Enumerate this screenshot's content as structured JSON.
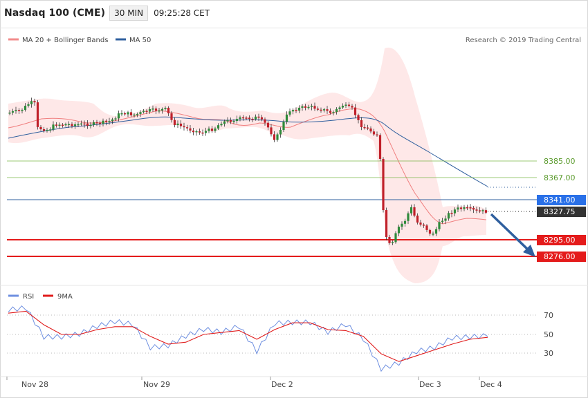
{
  "header": {
    "title": "Nasdaq 100 (CME)",
    "timeframe": "30 MIN",
    "time": "09:25:28 CET"
  },
  "legend": [
    {
      "label": "MA 20 + Bollinger Bands",
      "color": "#f28b8b"
    },
    {
      "label": "MA 50",
      "color": "#2f5f9e"
    }
  ],
  "credit": "Research © 2019 Trading Central",
  "levels": [
    {
      "value": "8385.00",
      "kind": "green"
    },
    {
      "value": "8367.00",
      "kind": "green"
    },
    {
      "value": "8341.00",
      "kind": "blue"
    },
    {
      "value": "8327.75",
      "kind": "current"
    },
    {
      "value": "8295.00",
      "kind": "red"
    },
    {
      "value": "8276.00",
      "kind": "red"
    }
  ],
  "rsi_panel": {
    "legend": [
      {
        "label": "RSI",
        "color": "#6e8fe0"
      },
      {
        "label": "9MA",
        "color": "#e01b1b"
      }
    ],
    "ticks": [
      "70",
      "50",
      "30"
    ]
  },
  "x_axis": [
    "Nov 28",
    "Nov 29",
    "Dec 2",
    "Dec 3",
    "Dec 4"
  ],
  "chart_data": {
    "type": "candlestick",
    "title": "Nasdaq 100 (CME)",
    "interval": "30 MIN",
    "price_levels": {
      "resistance": [
        8385.0,
        8367.0,
        8341.0
      ],
      "last_price": 8327.75,
      "support": [
        8295.0,
        8276.0
      ]
    },
    "approx_price_path": [
      {
        "x": "Nov 28",
        "price": 8438
      },
      {
        "x": "Nov 29",
        "price": 8432
      },
      {
        "x": "Dec 2",
        "price": 8445
      },
      {
        "x": "Dec 2 late",
        "price": 8425
      },
      {
        "x": "Dec 3 open",
        "price": 8280
      },
      {
        "x": "Dec 3",
        "price": 8305
      },
      {
        "x": "Dec 4",
        "price": 8328
      }
    ],
    "rsi_ticks": [
      70,
      50,
      30
    ],
    "rsi_series": [
      {
        "name": "RSI",
        "approx_values": [
          75,
          77,
          47,
          47,
          50,
          58,
          63,
          60,
          36,
          38,
          48,
          55,
          52,
          58,
          32,
          61,
          62,
          62,
          52,
          60,
          45,
          14,
          20,
          32,
          36,
          46,
          47,
          48
        ]
      },
      {
        "name": "9MA",
        "approx_values": [
          72,
          74,
          60,
          50,
          50,
          55,
          58,
          58,
          48,
          40,
          42,
          50,
          52,
          54,
          45,
          55,
          62,
          62,
          55,
          54,
          48,
          30,
          22,
          28,
          34,
          40,
          45,
          47
        ]
      }
    ]
  }
}
